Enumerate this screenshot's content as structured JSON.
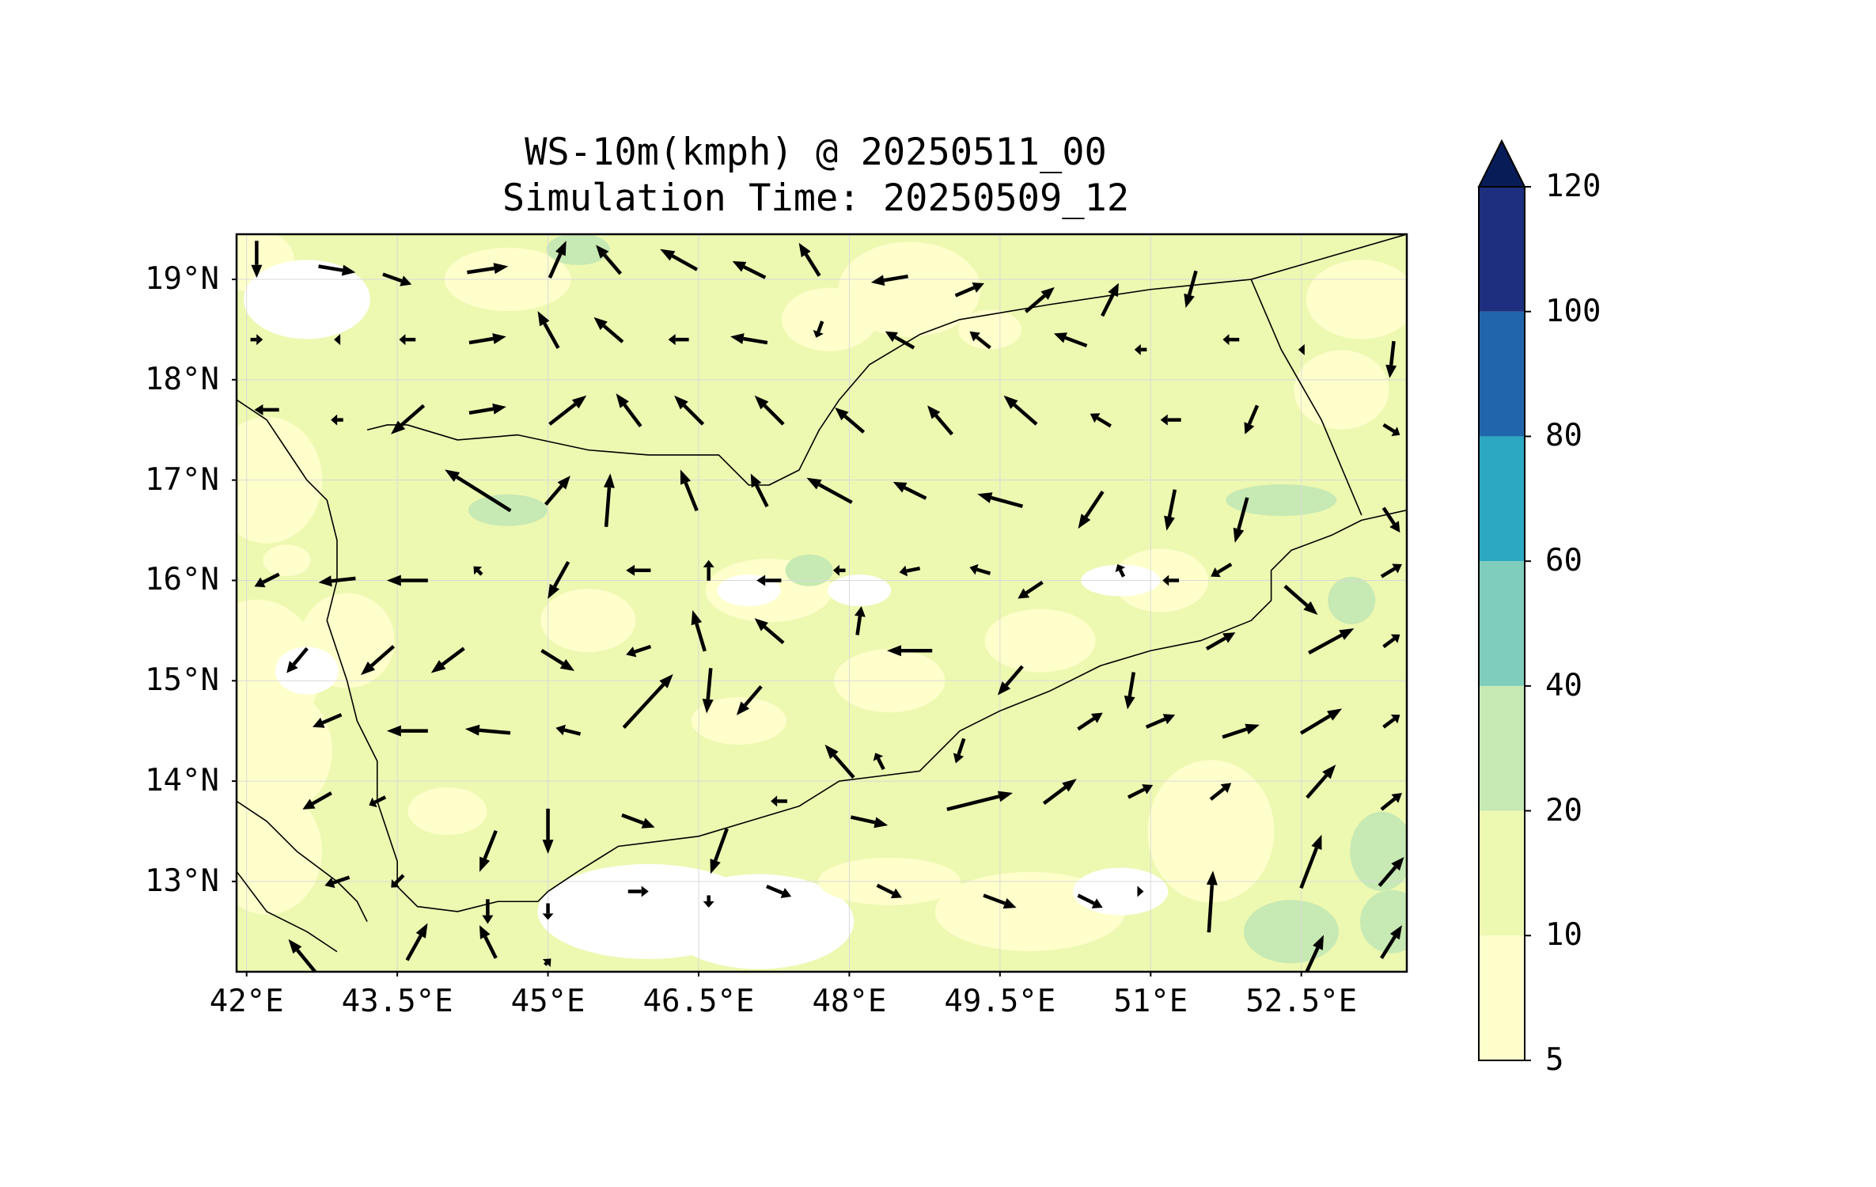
{
  "title": {
    "line1": "WS-10m(kmph) @ 20250511_00",
    "line2": "Simulation Time: 20250509_12"
  },
  "map": {
    "region": "Yemen",
    "lon_range": [
      41.9,
      53.55
    ],
    "lat_range": [
      12.1,
      19.45
    ],
    "lat_ticks": [
      {
        "value": 19,
        "label": "19°N"
      },
      {
        "value": 18,
        "label": "18°N"
      },
      {
        "value": 17,
        "label": "17°N"
      },
      {
        "value": 16,
        "label": "16°N"
      },
      {
        "value": 15,
        "label": "15°N"
      },
      {
        "value": 14,
        "label": "14°N"
      },
      {
        "value": 13,
        "label": "13°N"
      }
    ],
    "lon_ticks": [
      {
        "value": 42,
        "label": "42°E"
      },
      {
        "value": 43.5,
        "label": "43.5°E"
      },
      {
        "value": 45,
        "label": "45°E"
      },
      {
        "value": 46.5,
        "label": "46.5°E"
      },
      {
        "value": 48,
        "label": "48°E"
      },
      {
        "value": 49.5,
        "label": "49.5°E"
      },
      {
        "value": 51,
        "label": "51°E"
      },
      {
        "value": 52.5,
        "label": "52.5°E"
      }
    ],
    "gridlines": true,
    "field_colors": {
      "calm": "#ffffff",
      "5_10": "#ffffcc",
      "10_20": "#edf8b1",
      "20_40": "#c7e9b4"
    },
    "arrow_color": "#000000",
    "wind_arrows_kmph": [
      [
        42.1,
        19.2,
        0,
        -18
      ],
      [
        42.9,
        19.1,
        18,
        -3
      ],
      [
        43.5,
        19.0,
        14,
        -5
      ],
      [
        44.4,
        19.1,
        20,
        3
      ],
      [
        45.1,
        19.2,
        8,
        18
      ],
      [
        45.6,
        19.2,
        -12,
        14
      ],
      [
        46.3,
        19.2,
        -18,
        10
      ],
      [
        47.0,
        19.1,
        -16,
        8
      ],
      [
        47.6,
        19.2,
        -10,
        16
      ],
      [
        48.4,
        19.0,
        -18,
        -3
      ],
      [
        49.2,
        18.9,
        14,
        6
      ],
      [
        49.9,
        18.8,
        14,
        12
      ],
      [
        50.6,
        18.8,
        8,
        16
      ],
      [
        51.4,
        18.9,
        -5,
        -18
      ],
      [
        42.1,
        18.4,
        6,
        0
      ],
      [
        42.9,
        18.4,
        -3,
        0
      ],
      [
        43.6,
        18.4,
        -8,
        0
      ],
      [
        44.4,
        18.4,
        18,
        3
      ],
      [
        45.0,
        18.5,
        -10,
        18
      ],
      [
        45.6,
        18.5,
        -14,
        12
      ],
      [
        46.3,
        18.4,
        -10,
        0
      ],
      [
        47.0,
        18.4,
        -18,
        3
      ],
      [
        47.7,
        18.5,
        -3,
        -8
      ],
      [
        48.5,
        18.4,
        -14,
        8
      ],
      [
        49.3,
        18.4,
        -10,
        8
      ],
      [
        50.2,
        18.4,
        -16,
        6
      ],
      [
        50.9,
        18.3,
        -6,
        0
      ],
      [
        51.8,
        18.4,
        -8,
        0
      ],
      [
        52.5,
        18.3,
        -3,
        0
      ],
      [
        53.4,
        18.2,
        -2,
        -18
      ],
      [
        42.2,
        17.7,
        -12,
        0
      ],
      [
        42.9,
        17.6,
        -6,
        0
      ],
      [
        43.6,
        17.6,
        -16,
        -14
      ],
      [
        44.4,
        17.7,
        18,
        3
      ],
      [
        45.2,
        17.7,
        18,
        14
      ],
      [
        45.8,
        17.7,
        -12,
        16
      ],
      [
        46.4,
        17.7,
        -14,
        14
      ],
      [
        47.2,
        17.7,
        -14,
        14
      ],
      [
        48.0,
        17.6,
        -14,
        12
      ],
      [
        48.9,
        17.6,
        -12,
        14
      ],
      [
        49.7,
        17.7,
        -16,
        14
      ],
      [
        50.5,
        17.6,
        -10,
        6
      ],
      [
        51.2,
        17.6,
        -10,
        0
      ],
      [
        52.0,
        17.6,
        -6,
        -14
      ],
      [
        53.4,
        17.5,
        8,
        -5
      ],
      [
        44.3,
        16.9,
        -32,
        20
      ],
      [
        45.1,
        16.9,
        12,
        14
      ],
      [
        45.6,
        16.8,
        2,
        26
      ],
      [
        46.4,
        16.9,
        -8,
        20
      ],
      [
        47.1,
        16.9,
        -8,
        16
      ],
      [
        47.8,
        16.9,
        -22,
        12
      ],
      [
        48.6,
        16.9,
        -16,
        8
      ],
      [
        49.5,
        16.8,
        -22,
        6
      ],
      [
        50.4,
        16.7,
        -12,
        -18
      ],
      [
        51.2,
        16.7,
        -4,
        -20
      ],
      [
        51.9,
        16.6,
        -6,
        -22
      ],
      [
        53.4,
        16.6,
        8,
        -12
      ],
      [
        42.2,
        16.0,
        -12,
        -6
      ],
      [
        42.9,
        16.0,
        -18,
        -2
      ],
      [
        43.6,
        16.0,
        -20,
        0
      ],
      [
        44.3,
        16.1,
        -4,
        4
      ],
      [
        45.1,
        16.0,
        -10,
        -18
      ],
      [
        45.9,
        16.1,
        -12,
        0
      ],
      [
        46.6,
        16.1,
        0,
        10
      ],
      [
        47.2,
        16.0,
        -12,
        0
      ],
      [
        47.9,
        16.1,
        -6,
        0
      ],
      [
        48.6,
        16.1,
        -10,
        -2
      ],
      [
        49.3,
        16.1,
        -10,
        3
      ],
      [
        49.8,
        15.9,
        -12,
        -8
      ],
      [
        50.7,
        16.1,
        -3,
        6
      ],
      [
        51.2,
        16.0,
        -8,
        0
      ],
      [
        51.7,
        16.1,
        -10,
        -6
      ],
      [
        52.5,
        15.8,
        16,
        -14
      ],
      [
        53.4,
        16.1,
        10,
        6
      ],
      [
        42.5,
        15.2,
        -10,
        -12
      ],
      [
        43.3,
        15.2,
        -16,
        -14
      ],
      [
        44.0,
        15.2,
        -16,
        -12
      ],
      [
        45.1,
        15.2,
        16,
        -10
      ],
      [
        45.9,
        15.3,
        -12,
        -4
      ],
      [
        46.5,
        15.5,
        -6,
        20
      ],
      [
        47.2,
        15.5,
        -14,
        12
      ],
      [
        48.1,
        15.6,
        2,
        14
      ],
      [
        48.6,
        15.3,
        -22,
        0
      ],
      [
        49.6,
        15.0,
        -12,
        -14
      ],
      [
        50.8,
        14.9,
        -3,
        -18
      ],
      [
        51.7,
        15.4,
        14,
        8
      ],
      [
        52.8,
        15.4,
        22,
        12
      ],
      [
        53.4,
        15.4,
        8,
        6
      ],
      [
        42.8,
        14.6,
        -14,
        -6
      ],
      [
        43.6,
        14.5,
        -20,
        0
      ],
      [
        44.4,
        14.5,
        -22,
        2
      ],
      [
        45.2,
        14.5,
        -12,
        3
      ],
      [
        46.0,
        14.8,
        24,
        26
      ],
      [
        46.6,
        14.9,
        -2,
        -22
      ],
      [
        47.0,
        14.8,
        -12,
        -14
      ],
      [
        47.9,
        14.2,
        -14,
        16
      ],
      [
        48.3,
        14.2,
        -4,
        8
      ],
      [
        49.1,
        14.3,
        -4,
        -12
      ],
      [
        50.4,
        14.6,
        12,
        8
      ],
      [
        51.1,
        14.6,
        14,
        6
      ],
      [
        51.9,
        14.5,
        18,
        6
      ],
      [
        52.7,
        14.6,
        20,
        12
      ],
      [
        53.4,
        14.6,
        8,
        6
      ],
      [
        42.7,
        13.8,
        -14,
        -8
      ],
      [
        43.3,
        13.8,
        -8,
        -4
      ],
      [
        44.4,
        13.3,
        -8,
        -20
      ],
      [
        45.0,
        13.5,
        0,
        -22
      ],
      [
        45.9,
        13.6,
        16,
        -6
      ],
      [
        46.7,
        13.3,
        -8,
        -22
      ],
      [
        47.3,
        13.8,
        -8,
        0
      ],
      [
        48.2,
        13.6,
        18,
        -4
      ],
      [
        49.3,
        13.8,
        32,
        8
      ],
      [
        50.1,
        13.9,
        16,
        12
      ],
      [
        50.9,
        13.9,
        12,
        6
      ],
      [
        51.7,
        13.9,
        10,
        8
      ],
      [
        52.7,
        14.0,
        14,
        16
      ],
      [
        53.4,
        13.8,
        10,
        8
      ],
      [
        42.9,
        13.0,
        -12,
        -4
      ],
      [
        43.5,
        13.0,
        -6,
        -6
      ],
      [
        44.4,
        12.7,
        0,
        -12
      ],
      [
        45.0,
        12.7,
        0,
        -8
      ],
      [
        45.9,
        12.9,
        10,
        0
      ],
      [
        46.6,
        12.8,
        0,
        -6
      ],
      [
        47.3,
        12.9,
        12,
        -5
      ],
      [
        48.4,
        12.9,
        12,
        -6
      ],
      [
        49.5,
        12.8,
        16,
        -6
      ],
      [
        50.4,
        12.8,
        12,
        -6
      ],
      [
        50.9,
        12.9,
        3,
        0
      ],
      [
        51.6,
        12.8,
        2,
        30
      ],
      [
        52.6,
        13.2,
        10,
        26
      ],
      [
        53.4,
        13.1,
        12,
        14
      ],
      [
        42.6,
        12.2,
        -18,
        22
      ],
      [
        43.7,
        12.4,
        10,
        18
      ],
      [
        44.4,
        12.4,
        -8,
        16
      ],
      [
        45.0,
        12.2,
        3,
        3
      ],
      [
        52.6,
        12.2,
        12,
        26
      ],
      [
        53.4,
        12.4,
        10,
        16
      ]
    ],
    "coastline": {
      "west_coast": [
        [
          41.9,
          17.8
        ],
        [
          42.2,
          17.6
        ],
        [
          42.4,
          17.3
        ],
        [
          42.6,
          17.0
        ],
        [
          42.8,
          16.8
        ],
        [
          42.9,
          16.4
        ],
        [
          42.9,
          16.0
        ],
        [
          42.8,
          15.6
        ],
        [
          42.9,
          15.3
        ],
        [
          43.0,
          15.0
        ],
        [
          43.1,
          14.6
        ],
        [
          43.3,
          14.2
        ],
        [
          43.3,
          13.8
        ],
        [
          43.4,
          13.5
        ],
        [
          43.5,
          13.2
        ],
        [
          43.5,
          12.95
        ],
        [
          43.7,
          12.75
        ],
        [
          44.1,
          12.7
        ],
        [
          44.5,
          12.8
        ],
        [
          44.9,
          12.8
        ],
        [
          45.0,
          12.9
        ]
      ],
      "south_coast": [
        [
          45.0,
          12.9
        ],
        [
          45.3,
          13.1
        ],
        [
          45.7,
          13.35
        ],
        [
          46.1,
          13.4
        ],
        [
          46.5,
          13.45
        ],
        [
          47.0,
          13.6
        ],
        [
          47.5,
          13.75
        ],
        [
          47.9,
          14.0
        ],
        [
          48.3,
          14.05
        ],
        [
          48.7,
          14.1
        ],
        [
          49.1,
          14.5
        ],
        [
          49.5,
          14.7
        ],
        [
          50.0,
          14.9
        ],
        [
          50.5,
          15.15
        ],
        [
          51.0,
          15.3
        ],
        [
          51.5,
          15.4
        ],
        [
          52.0,
          15.6
        ],
        [
          52.2,
          15.8
        ],
        [
          52.2,
          16.1
        ],
        [
          52.4,
          16.3
        ],
        [
          52.8,
          16.45
        ],
        [
          53.1,
          16.6
        ],
        [
          53.55,
          16.7
        ]
      ],
      "african_coast": [
        [
          41.9,
          13.8
        ],
        [
          42.2,
          13.6
        ],
        [
          42.5,
          13.3
        ],
        [
          42.9,
          13.0
        ],
        [
          43.1,
          12.8
        ],
        [
          43.2,
          12.6
        ]
      ],
      "africa_horn": [
        [
          41.9,
          13.1
        ],
        [
          42.2,
          12.7
        ],
        [
          42.6,
          12.5
        ],
        [
          42.9,
          12.3
        ]
      ]
    },
    "borders": {
      "saudi": [
        [
          43.6,
          17.55
        ],
        [
          44.1,
          17.4
        ],
        [
          44.7,
          17.45
        ],
        [
          45.4,
          17.3
        ],
        [
          46.0,
          17.25
        ],
        [
          46.7,
          17.25
        ],
        [
          47.0,
          16.95
        ],
        [
          47.2,
          16.95
        ],
        [
          47.5,
          17.1
        ],
        [
          47.7,
          17.5
        ],
        [
          47.9,
          17.8
        ],
        [
          48.2,
          18.15
        ],
        [
          48.7,
          18.45
        ],
        [
          49.1,
          18.6
        ],
        [
          50.0,
          18.75
        ],
        [
          51.0,
          18.9
        ],
        [
          52.0,
          19.0
        ],
        [
          53.55,
          19.45
        ]
      ],
      "oman": [
        [
          52.0,
          19.0
        ],
        [
          52.3,
          18.3
        ],
        [
          52.7,
          17.6
        ],
        [
          53.1,
          16.65
        ]
      ],
      "saudi_west": [
        [
          43.2,
          17.5
        ],
        [
          43.4,
          17.55
        ],
        [
          43.6,
          17.55
        ]
      ]
    }
  },
  "colorbar": {
    "ticks": [
      "5",
      "10",
      "20",
      "40",
      "60",
      "80",
      "100",
      "120"
    ],
    "colors": [
      "#ffffcc",
      "#edf8b1",
      "#c7e9b4",
      "#7fcdbb",
      "#2ca8c2",
      "#2166ac",
      "#1d2f7e"
    ],
    "extend_color": "#081d58"
  }
}
